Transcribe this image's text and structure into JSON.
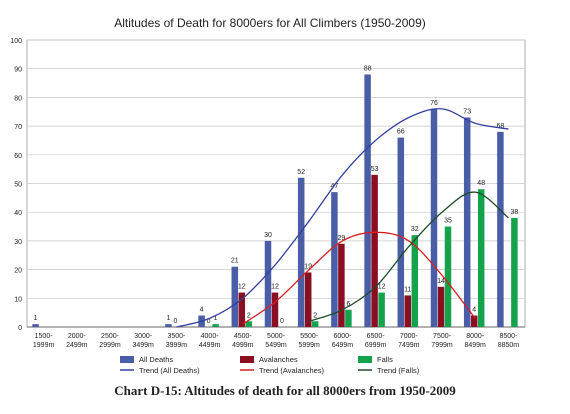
{
  "chart_data": {
    "type": "bar",
    "title": "Altitudes of Death for 8000ers for All Climbers (1950-2009)",
    "caption": "Chart D-15: Altitudes of death for all 8000ers from 1950-2009",
    "ylim": [
      0,
      100
    ],
    "yticks": [
      0,
      10,
      20,
      30,
      40,
      50,
      60,
      70,
      80,
      90,
      100
    ],
    "grid": true,
    "legend_position": "bottom",
    "categories": [
      [
        "1500-",
        "1999m"
      ],
      [
        "2000-",
        "2499m"
      ],
      [
        "2500-",
        "2999m"
      ],
      [
        "3000-",
        "3499m"
      ],
      [
        "3500-",
        "3999m"
      ],
      [
        "4000-",
        "4499m"
      ],
      [
        "4500-",
        "4999m"
      ],
      [
        "5000-",
        "5499m"
      ],
      [
        "5500-",
        "5999m"
      ],
      [
        "6000-",
        "6499m"
      ],
      [
        "6500-",
        "6999m"
      ],
      [
        "7000-",
        "7499m"
      ],
      [
        "7500-",
        "7999m"
      ],
      [
        "8000-",
        "8499m"
      ],
      [
        "8500-",
        "8850m"
      ]
    ],
    "series": [
      {
        "name": "All Deaths",
        "color": "#4a5ea8",
        "values": [
          1,
          null,
          null,
          null,
          1,
          4,
          21,
          30,
          52,
          47,
          88,
          66,
          76,
          73,
          68
        ],
        "labels": [
          "1",
          "",
          "",
          "",
          "1",
          "4",
          "21",
          "30",
          "52",
          "47",
          "88",
          "66",
          "76",
          "73",
          "68"
        ]
      },
      {
        "name": "Avalanches",
        "color": "#8b0f22",
        "values": [
          null,
          null,
          null,
          null,
          0,
          0,
          12,
          12,
          19,
          29,
          53,
          11,
          14,
          4,
          null
        ],
        "labels": [
          "",
          "",
          "",
          "",
          "0",
          "0",
          "12",
          "12",
          "19",
          "29",
          "53",
          "11",
          "14",
          "4",
          ""
        ]
      },
      {
        "name": "Falls",
        "color": "#13a34d",
        "values": [
          null,
          null,
          null,
          null,
          null,
          1,
          2,
          0,
          2,
          6,
          12,
          32,
          35,
          48,
          38
        ],
        "labels": [
          "",
          "",
          "",
          "",
          "",
          "1",
          "2",
          "0",
          "2",
          "6",
          "12",
          "32",
          "35",
          "48",
          "38"
        ]
      }
    ],
    "trends": [
      {
        "name": "Trend (All Deaths)",
        "color": "#3340a0",
        "values": [
          null,
          null,
          null,
          null,
          0,
          3,
          10,
          22,
          37,
          53,
          65,
          73,
          76,
          71,
          69
        ]
      },
      {
        "name": "Trend (Avalanches)",
        "color": "#d42020",
        "values": [
          null,
          null,
          null,
          null,
          null,
          null,
          1,
          9,
          20,
          30,
          33,
          30,
          18,
          3,
          null
        ]
      },
      {
        "name": "Trend (Falls)",
        "color": "#1d4a2a",
        "values": [
          null,
          null,
          null,
          null,
          null,
          null,
          null,
          null,
          2,
          6,
          14,
          28,
          40,
          47,
          38
        ]
      }
    ]
  }
}
